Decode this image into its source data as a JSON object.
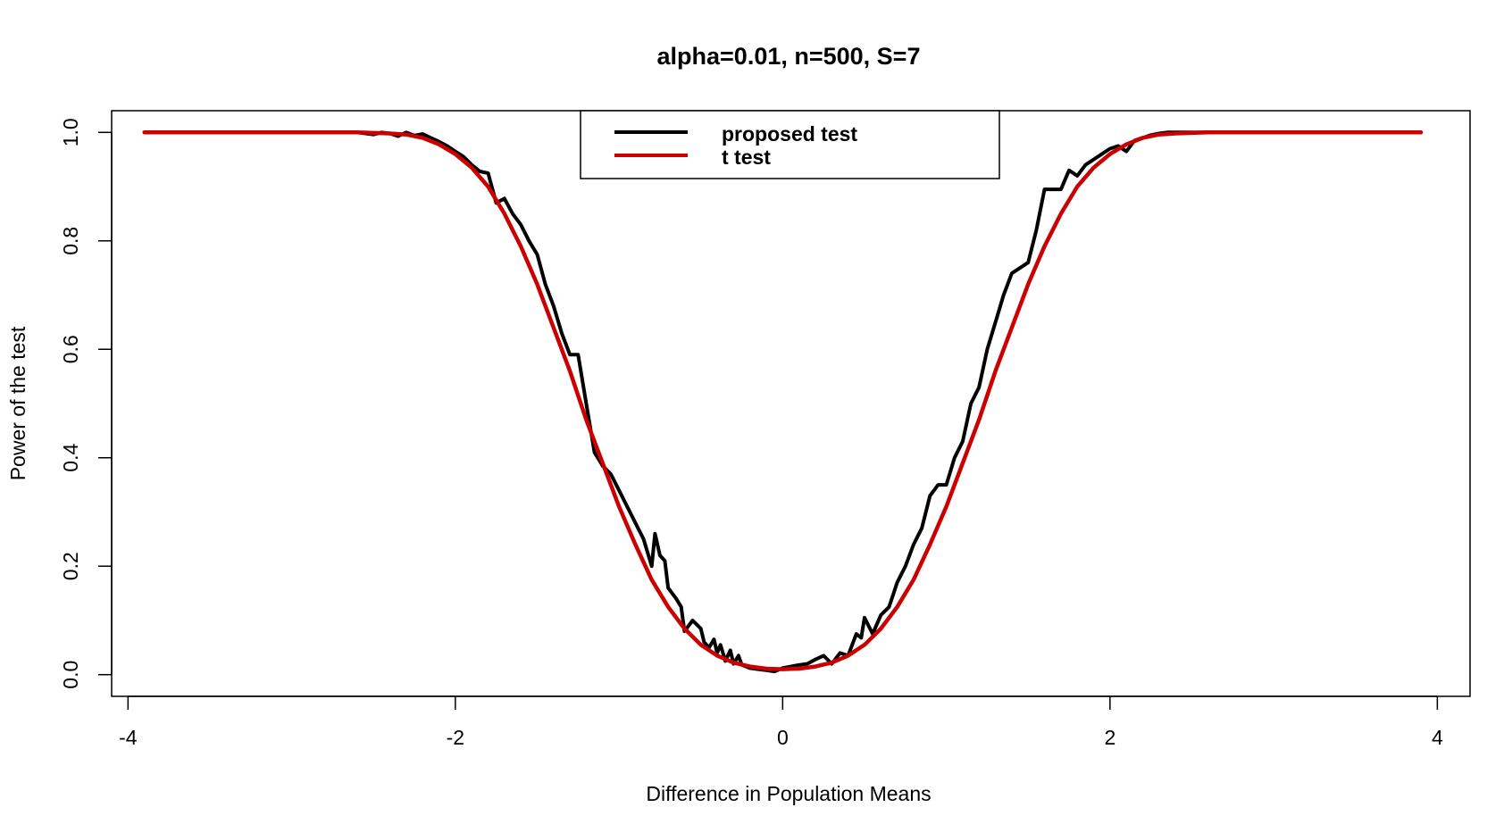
{
  "chart_data": {
    "type": "line",
    "title": "alpha=0.01, n=500, S=7",
    "xlabel": "Difference in Population Means",
    "ylabel": "Power of the test",
    "xlim": [
      -4.1,
      4.2
    ],
    "ylim": [
      -0.04,
      1.04
    ],
    "xticks": [
      -4,
      -2,
      0,
      2,
      4
    ],
    "xtick_labels": [
      "-4",
      "-2",
      "0",
      "2",
      "4"
    ],
    "yticks": [
      0.0,
      0.2,
      0.4,
      0.6,
      0.8,
      1.0
    ],
    "ytick_labels": [
      "0.0",
      "0.2",
      "0.4",
      "0.6",
      "0.8",
      "1.0"
    ],
    "grid": false,
    "legend_position": "top-center",
    "series": [
      {
        "name": "proposed test",
        "color": "#000000",
        "x": [
          -3.9,
          -2.6,
          -2.5,
          -2.45,
          -2.4,
          -2.35,
          -2.3,
          -2.25,
          -2.2,
          -2.15,
          -2.1,
          -2.05,
          -2.0,
          -1.95,
          -1.9,
          -1.85,
          -1.8,
          -1.75,
          -1.7,
          -1.65,
          -1.6,
          -1.55,
          -1.5,
          -1.45,
          -1.4,
          -1.35,
          -1.3,
          -1.25,
          -1.2,
          -1.15,
          -1.1,
          -1.05,
          -1.0,
          -0.95,
          -0.9,
          -0.85,
          -0.8,
          -0.78,
          -0.75,
          -0.72,
          -0.7,
          -0.65,
          -0.62,
          -0.6,
          -0.55,
          -0.5,
          -0.48,
          -0.45,
          -0.42,
          -0.4,
          -0.38,
          -0.35,
          -0.32,
          -0.3,
          -0.27,
          -0.25,
          -0.2,
          -0.15,
          -0.1,
          -0.05,
          0.0,
          0.05,
          0.1,
          0.15,
          0.2,
          0.25,
          0.3,
          0.35,
          0.4,
          0.45,
          0.48,
          0.5,
          0.55,
          0.6,
          0.65,
          0.7,
          0.75,
          0.8,
          0.85,
          0.9,
          0.95,
          1.0,
          1.05,
          1.1,
          1.15,
          1.2,
          1.25,
          1.3,
          1.35,
          1.4,
          1.45,
          1.5,
          1.55,
          1.6,
          1.65,
          1.7,
          1.75,
          1.8,
          1.85,
          1.9,
          1.95,
          2.0,
          2.05,
          2.1,
          2.15,
          2.2,
          2.25,
          2.3,
          2.35,
          2.4,
          2.45,
          2.5,
          2.6,
          3.9
        ],
        "values": [
          1.0,
          1.0,
          0.996,
          1.0,
          0.998,
          0.993,
          1.0,
          0.994,
          0.997,
          0.99,
          0.983,
          0.975,
          0.965,
          0.955,
          0.94,
          0.928,
          0.925,
          0.87,
          0.878,
          0.85,
          0.83,
          0.8,
          0.775,
          0.72,
          0.68,
          0.63,
          0.59,
          0.59,
          0.5,
          0.41,
          0.385,
          0.37,
          0.34,
          0.31,
          0.28,
          0.25,
          0.2,
          0.26,
          0.22,
          0.21,
          0.16,
          0.14,
          0.125,
          0.08,
          0.1,
          0.085,
          0.06,
          0.05,
          0.065,
          0.04,
          0.055,
          0.025,
          0.045,
          0.02,
          0.035,
          0.018,
          0.012,
          0.01,
          0.008,
          0.006,
          0.012,
          0.015,
          0.018,
          0.02,
          0.028,
          0.035,
          0.02,
          0.04,
          0.035,
          0.075,
          0.068,
          0.105,
          0.075,
          0.11,
          0.125,
          0.17,
          0.2,
          0.24,
          0.27,
          0.33,
          0.35,
          0.35,
          0.4,
          0.43,
          0.5,
          0.53,
          0.6,
          0.65,
          0.7,
          0.74,
          0.75,
          0.76,
          0.82,
          0.895,
          0.895,
          0.895,
          0.93,
          0.92,
          0.94,
          0.95,
          0.96,
          0.97,
          0.975,
          0.965,
          0.985,
          0.99,
          0.995,
          0.998,
          1.0,
          1.0,
          1.0,
          1.0,
          1.0,
          1.0
        ]
      },
      {
        "name": "t test",
        "color": "#cc0000",
        "x": [
          -3.9,
          -2.6,
          -2.5,
          -2.4,
          -2.3,
          -2.2,
          -2.1,
          -2.0,
          -1.9,
          -1.8,
          -1.7,
          -1.6,
          -1.5,
          -1.4,
          -1.3,
          -1.2,
          -1.1,
          -1.0,
          -0.9,
          -0.8,
          -0.7,
          -0.6,
          -0.5,
          -0.4,
          -0.3,
          -0.2,
          -0.1,
          0.0,
          0.1,
          0.2,
          0.3,
          0.4,
          0.5,
          0.6,
          0.7,
          0.8,
          0.9,
          1.0,
          1.1,
          1.2,
          1.3,
          1.4,
          1.5,
          1.6,
          1.7,
          1.8,
          1.9,
          2.0,
          2.1,
          2.2,
          2.3,
          2.4,
          2.5,
          2.6,
          3.9
        ],
        "values": [
          1.0,
          1.0,
          0.999,
          0.998,
          0.996,
          0.99,
          0.978,
          0.96,
          0.935,
          0.9,
          0.85,
          0.79,
          0.72,
          0.64,
          0.56,
          0.47,
          0.39,
          0.31,
          0.24,
          0.175,
          0.125,
          0.085,
          0.055,
          0.035,
          0.022,
          0.015,
          0.011,
          0.01,
          0.011,
          0.015,
          0.022,
          0.035,
          0.055,
          0.085,
          0.125,
          0.175,
          0.24,
          0.31,
          0.39,
          0.47,
          0.56,
          0.64,
          0.72,
          0.79,
          0.85,
          0.9,
          0.935,
          0.96,
          0.978,
          0.99,
          0.996,
          0.998,
          0.999,
          1.0,
          1.0
        ]
      }
    ]
  }
}
